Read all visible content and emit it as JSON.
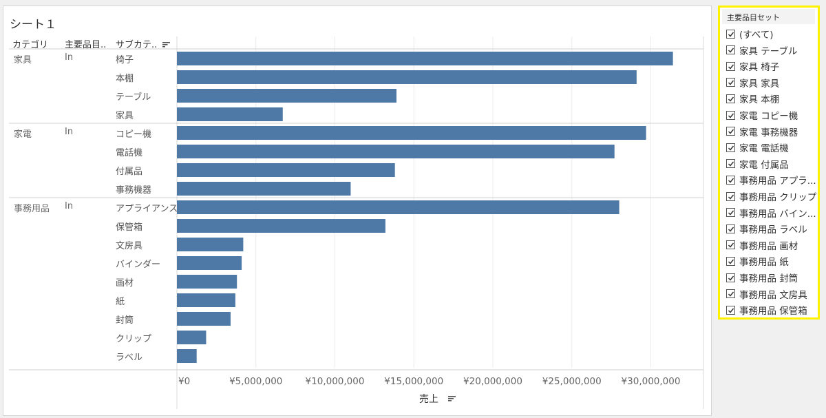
{
  "sheet": {
    "title": "シート１"
  },
  "headers": {
    "category": "カテゴリ",
    "member": "主要品目..",
    "subcategory": "サブカテ..",
    "sort_icon": "sort-descending-icon"
  },
  "axis": {
    "label": "売上"
  },
  "chart_data": {
    "type": "bar",
    "orientation": "horizontal",
    "xlabel": "売上",
    "ylabel": "",
    "xlim": [
      0,
      33000000
    ],
    "x_ticks": [
      0,
      5000000,
      10000000,
      15000000,
      20000000,
      25000000,
      30000000
    ],
    "x_tick_labels": [
      "¥0",
      "¥5,000,000",
      "¥10,000,000",
      "¥15,000,000",
      "¥20,000,000",
      "¥25,000,000",
      "¥30,000,000"
    ],
    "bar_color": "#4e79a7",
    "grid": true,
    "groups": [
      {
        "category": "家具",
        "member": "In",
        "rows": [
          {
            "subcategory": "椅子",
            "value": 31400000
          },
          {
            "subcategory": "本棚",
            "value": 29100000
          },
          {
            "subcategory": "テーブル",
            "value": 13900000
          },
          {
            "subcategory": "家具",
            "value": 6700000
          }
        ]
      },
      {
        "category": "家電",
        "member": "In",
        "rows": [
          {
            "subcategory": "コピー機",
            "value": 29700000
          },
          {
            "subcategory": "電話機",
            "value": 27700000
          },
          {
            "subcategory": "付属品",
            "value": 13800000
          },
          {
            "subcategory": "事務機器",
            "value": 11000000
          }
        ]
      },
      {
        "category": "事務用品",
        "member": "In",
        "rows": [
          {
            "subcategory": "アプライアンス",
            "value": 28000000
          },
          {
            "subcategory": "保管箱",
            "value": 13200000
          },
          {
            "subcategory": "文房具",
            "value": 4200000
          },
          {
            "subcategory": "バインダー",
            "value": 4100000
          },
          {
            "subcategory": "画材",
            "value": 3800000
          },
          {
            "subcategory": "紙",
            "value": 3700000
          },
          {
            "subcategory": "封筒",
            "value": 3400000
          },
          {
            "subcategory": "クリップ",
            "value": 1850000
          },
          {
            "subcategory": "ラベル",
            "value": 1250000
          }
        ]
      }
    ]
  },
  "legend": {
    "title": "主要品目セット",
    "items": [
      {
        "label": "(すべて)",
        "checked": true
      },
      {
        "label": "家具 テーブル",
        "checked": true
      },
      {
        "label": "家具 椅子",
        "checked": true
      },
      {
        "label": "家具 家具",
        "checked": true
      },
      {
        "label": "家具 本棚",
        "checked": true
      },
      {
        "label": "家電 コピー機",
        "checked": true
      },
      {
        "label": "家電 事務機器",
        "checked": true
      },
      {
        "label": "家電 電話機",
        "checked": true
      },
      {
        "label": "家電 付属品",
        "checked": true
      },
      {
        "label": "事務用品 アプラ...",
        "checked": true
      },
      {
        "label": "事務用品 クリップ",
        "checked": true
      },
      {
        "label": "事務用品 バイン...",
        "checked": true
      },
      {
        "label": "事務用品 ラベル",
        "checked": true
      },
      {
        "label": "事務用品 画材",
        "checked": true
      },
      {
        "label": "事務用品 紙",
        "checked": true
      },
      {
        "label": "事務用品 封筒",
        "checked": true
      },
      {
        "label": "事務用品 文房具",
        "checked": true
      },
      {
        "label": "事務用品 保管箱",
        "checked": true
      }
    ]
  }
}
